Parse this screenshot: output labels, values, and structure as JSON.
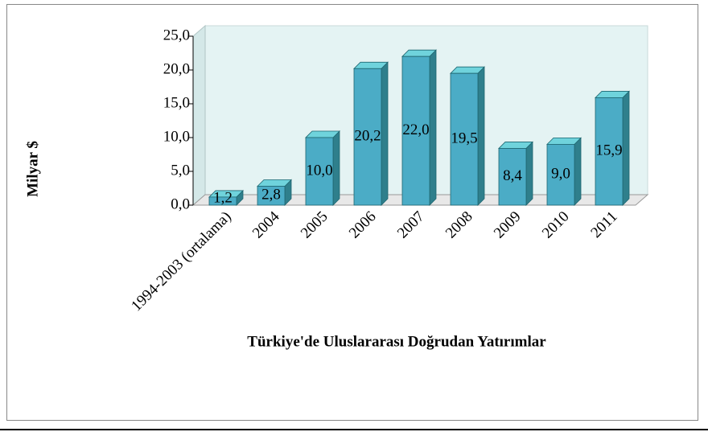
{
  "chart_data": {
    "type": "bar3d",
    "title": "Türkiye'de Uluslararası Doğrudan Yatırımlar",
    "y_axis_label": "Milyar $",
    "categories": [
      "1994-2003 (ortalama)",
      "2004",
      "2005",
      "2006",
      "2007",
      "2008",
      "2009",
      "2010",
      "2011"
    ],
    "values": [
      1.2,
      2.8,
      10.0,
      20.2,
      22.0,
      19.5,
      8.4,
      9.0,
      15.9
    ],
    "value_labels": [
      "1,2",
      "2,8",
      "10,0",
      "20,2",
      "22,0",
      "19,5",
      "8,4",
      "9,0",
      "15,9"
    ],
    "color": "#4bacc6",
    "ylim": [
      0,
      25
    ],
    "yticks": [
      {
        "value": 0,
        "label": "0,0"
      },
      {
        "value": 5,
        "label": "5,0"
      },
      {
        "value": 10,
        "label": "10,0"
      },
      {
        "value": 15,
        "label": "15,0"
      },
      {
        "value": 20,
        "label": "20,0"
      },
      {
        "value": 25,
        "label": "25,0"
      }
    ]
  }
}
